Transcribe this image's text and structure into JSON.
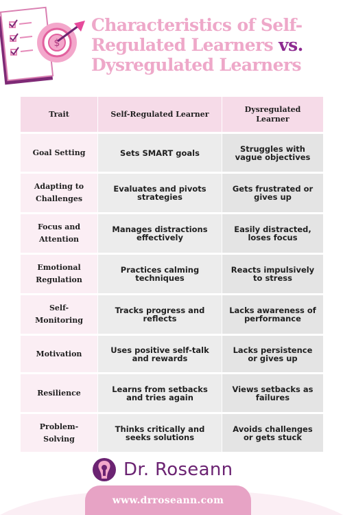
{
  "title": {
    "line1": "Characteristics of Self-",
    "line2a": "Regulated Learners ",
    "line2b": "vs.",
    "line3": "Dysregulated Learners"
  },
  "table": {
    "headers": [
      "Trait",
      "Self-Regulated Learner",
      "Dysregulated Learner"
    ],
    "rows": [
      {
        "trait": "Goal Setting",
        "self": "Sets SMART goals",
        "dys": "Struggles with vague objectives"
      },
      {
        "trait": "Adapting to Challenges",
        "self": "Evaluates and pivots strategies",
        "dys": "Gets frustrated or gives up"
      },
      {
        "trait": "Focus and Attention",
        "self": "Manages distractions effectively",
        "dys": "Easily distracted, loses focus"
      },
      {
        "trait": "Emotional Regulation",
        "self": "Practices calming techniques",
        "dys": "Reacts impulsively to stress"
      },
      {
        "trait": "Self-Monitoring",
        "self": "Tracks progress and reflects",
        "dys": "Lacks awareness of performance"
      },
      {
        "trait": "Motivation",
        "self": "Uses positive self-talk and rewards",
        "dys": "Lacks persistence or gives up"
      },
      {
        "trait": "Resilience",
        "self": "Learns from setbacks and tries again",
        "dys": "Views setbacks as failures"
      },
      {
        "trait": "Problem-Solving",
        "self": "Thinks critically and seeks solutions",
        "dys": "Avoids challenges or gets stuck"
      }
    ]
  },
  "logo": {
    "text": "Dr. Roseann"
  },
  "footer": {
    "url": "www.drroseann.com"
  },
  "colors": {
    "title_pink": "#eea8c9",
    "title_vs": "#8d2a90",
    "header_bg": "#f6dbe8",
    "trait_bg": "#fbeef4",
    "cell_bg": "#ececec",
    "brand_purple": "#6b2372",
    "footer_pink": "#e7a3c5"
  },
  "icons": [
    "checklist-target-illustration",
    "dollar-target-icon",
    "arrow-icon",
    "logo-mark-icon"
  ]
}
